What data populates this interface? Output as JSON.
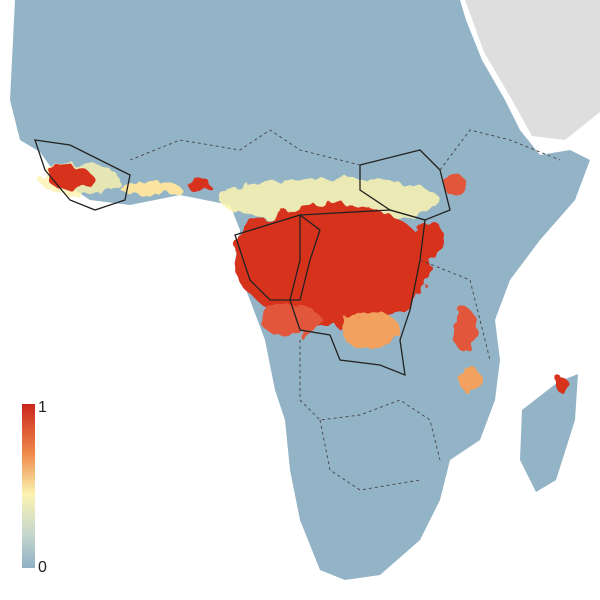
{
  "legend": {
    "max": 1,
    "min": 0
  }
}
